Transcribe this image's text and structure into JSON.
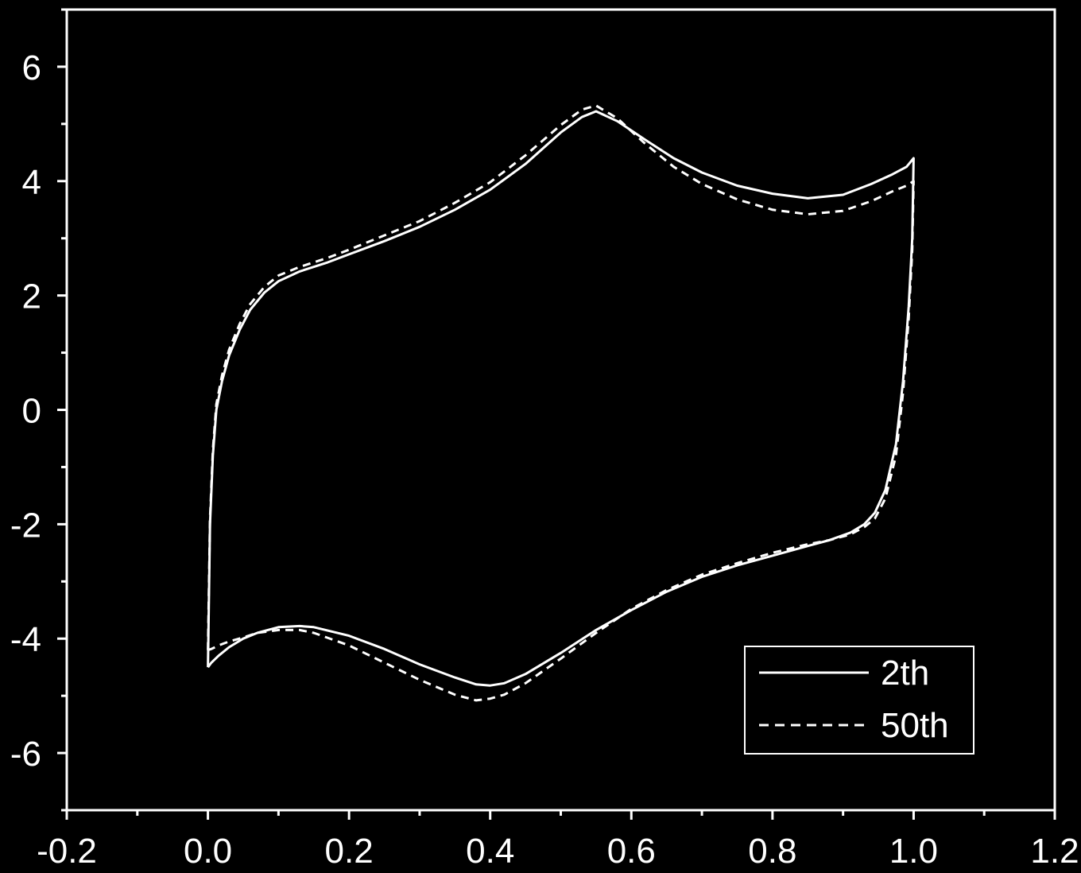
{
  "chart_data": {
    "type": "line",
    "title": "",
    "xlabel": "",
    "ylabel": "",
    "xlim": [
      -0.2,
      1.2
    ],
    "ylim": [
      -7,
      7
    ],
    "xticks": [
      -0.2,
      0.0,
      0.2,
      0.4,
      0.6,
      0.8,
      1.0,
      1.2
    ],
    "xtick_labels": [
      "-0.2",
      "0.0",
      "0.2",
      "0.4",
      "0.6",
      "0.8",
      "1.0",
      "1.2"
    ],
    "yticks": [
      -6,
      -4,
      -2,
      0,
      2,
      4,
      6
    ],
    "ytick_labels": [
      "-6",
      "-4",
      "-2",
      "0",
      "2",
      "4",
      "6"
    ],
    "grid": false,
    "legend_position": "bottom-right",
    "colors": {
      "background": "#000000",
      "foreground": "#ffffff"
    },
    "series": [
      {
        "name": "2th",
        "style": "solid",
        "x": [
          0.0,
          0.003,
          0.007,
          0.012,
          0.02,
          0.03,
          0.045,
          0.06,
          0.08,
          0.1,
          0.13,
          0.17,
          0.2,
          0.25,
          0.3,
          0.35,
          0.4,
          0.45,
          0.5,
          0.53,
          0.55,
          0.58,
          0.62,
          0.66,
          0.7,
          0.75,
          0.8,
          0.85,
          0.9,
          0.94,
          0.97,
          0.99,
          1.0,
          0.998,
          0.993,
          0.985,
          0.975,
          0.96,
          0.945,
          0.93,
          0.91,
          0.88,
          0.85,
          0.8,
          0.75,
          0.7,
          0.65,
          0.6,
          0.55,
          0.5,
          0.45,
          0.42,
          0.4,
          0.38,
          0.35,
          0.3,
          0.25,
          0.2,
          0.15,
          0.13,
          0.1,
          0.07,
          0.05,
          0.03,
          0.015,
          0.005,
          0.0
        ],
        "y": [
          -4.5,
          -2.0,
          -0.8,
          0.0,
          0.5,
          0.95,
          1.4,
          1.75,
          2.05,
          2.25,
          2.42,
          2.58,
          2.72,
          2.95,
          3.2,
          3.5,
          3.85,
          4.3,
          4.85,
          5.12,
          5.22,
          5.05,
          4.72,
          4.4,
          4.15,
          3.92,
          3.78,
          3.7,
          3.76,
          3.95,
          4.12,
          4.25,
          4.4,
          3.0,
          1.8,
          0.5,
          -0.6,
          -1.4,
          -1.8,
          -2.0,
          -2.15,
          -2.28,
          -2.38,
          -2.55,
          -2.72,
          -2.92,
          -3.18,
          -3.5,
          -3.85,
          -4.25,
          -4.62,
          -4.78,
          -4.82,
          -4.8,
          -4.68,
          -4.45,
          -4.18,
          -3.95,
          -3.8,
          -3.78,
          -3.8,
          -3.9,
          -4.0,
          -4.15,
          -4.3,
          -4.42,
          -4.5
        ]
      },
      {
        "name": "50th",
        "style": "dashed",
        "x": [
          0.0,
          0.003,
          0.007,
          0.012,
          0.02,
          0.03,
          0.045,
          0.06,
          0.08,
          0.1,
          0.13,
          0.17,
          0.2,
          0.25,
          0.3,
          0.35,
          0.4,
          0.45,
          0.5,
          0.53,
          0.55,
          0.58,
          0.62,
          0.66,
          0.7,
          0.75,
          0.8,
          0.85,
          0.9,
          0.94,
          0.97,
          0.99,
          1.0,
          0.998,
          0.993,
          0.985,
          0.975,
          0.96,
          0.945,
          0.93,
          0.91,
          0.88,
          0.85,
          0.8,
          0.75,
          0.7,
          0.65,
          0.6,
          0.55,
          0.5,
          0.45,
          0.42,
          0.4,
          0.38,
          0.35,
          0.3,
          0.25,
          0.2,
          0.15,
          0.13,
          0.1,
          0.07,
          0.05,
          0.03,
          0.015,
          0.005,
          0.0
        ],
        "y": [
          -4.2,
          -1.9,
          -0.7,
          0.1,
          0.6,
          1.05,
          1.5,
          1.85,
          2.15,
          2.35,
          2.5,
          2.66,
          2.8,
          3.05,
          3.3,
          3.62,
          3.98,
          4.45,
          4.98,
          5.25,
          5.32,
          5.1,
          4.65,
          4.25,
          3.95,
          3.68,
          3.5,
          3.42,
          3.48,
          3.65,
          3.82,
          3.92,
          4.0,
          2.8,
          1.6,
          0.3,
          -0.8,
          -1.55,
          -1.9,
          -2.05,
          -2.18,
          -2.28,
          -2.35,
          -2.5,
          -2.68,
          -2.88,
          -3.15,
          -3.48,
          -3.9,
          -4.35,
          -4.78,
          -4.98,
          -5.05,
          -5.08,
          -4.98,
          -4.72,
          -4.42,
          -4.12,
          -3.9,
          -3.85,
          -3.85,
          -3.9,
          -3.98,
          -4.05,
          -4.12,
          -4.18,
          -4.2
        ]
      }
    ]
  }
}
